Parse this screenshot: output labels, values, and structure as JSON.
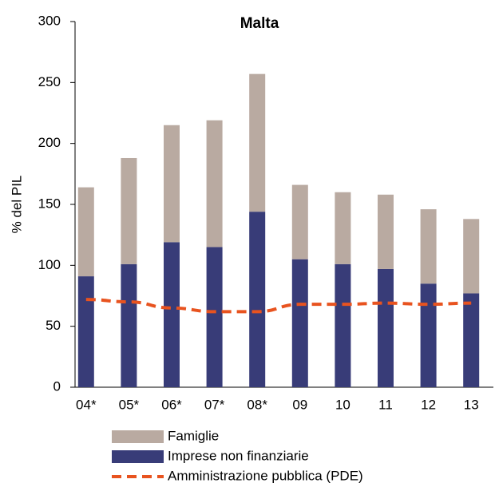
{
  "chart_data": {
    "type": "bar",
    "stacked": true,
    "title": "Malta",
    "y_label": "% del PIL",
    "categories": [
      "04*",
      "05*",
      "06*",
      "07*",
      "08*",
      "09",
      "10",
      "11",
      "12",
      "13"
    ],
    "series": [
      {
        "name": "Famiglie",
        "color": "#b9aaa1",
        "values": [
          73,
          87,
          96,
          104,
          113,
          61,
          59,
          61,
          61,
          61
        ]
      },
      {
        "name": "Imprese non finanziarie",
        "color": "#383c78",
        "values": [
          91,
          101,
          119,
          115,
          144,
          105,
          101,
          97,
          85,
          77
        ]
      },
      {
        "name": "Amministrazione pubblica (PDE)",
        "color": "#e8531f",
        "type": "line",
        "dashed": true,
        "values": [
          72,
          70,
          65,
          62,
          62,
          68,
          68,
          69,
          68,
          69
        ]
      }
    ],
    "ylim": [
      0,
      300
    ],
    "yticks": [
      0,
      50,
      100,
      150,
      200,
      250,
      300
    ],
    "grid": false
  }
}
